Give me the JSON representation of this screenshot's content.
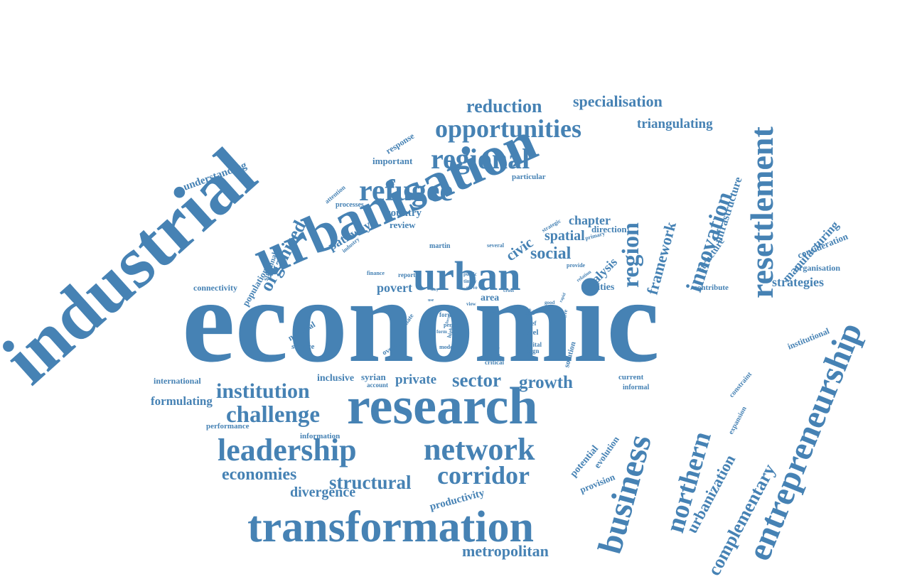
{
  "word_cloud": {
    "color": "#4682b4",
    "background": "#ffffff",
    "words": [
      "economic",
      "industrial",
      "urbanisation",
      "research",
      "urban",
      "resettlement",
      "entrepreneurship",
      "transformation",
      "network",
      "leadership",
      "business",
      "northern",
      "refugee",
      "regional",
      "opportunities",
      "innovation",
      "region",
      "corridor",
      "challenge",
      "institution",
      "sector",
      "structural",
      "reduction",
      "specialisation",
      "triangulating",
      "organised",
      "framework",
      "social",
      "complementary",
      "urbanization",
      "economies",
      "divergence",
      "metropolitan",
      "manufacturing",
      "strategies",
      "growth",
      "private",
      "civic",
      "spatial",
      "chapter",
      "analysis",
      "infrastructure",
      "understanding",
      "pathway",
      "formulating",
      "povert",
      "country",
      "review",
      "important",
      "response",
      "cities",
      "direction",
      "consideration",
      "organisation",
      "structure",
      "connectivity",
      "population",
      "sustainable",
      "national",
      "inclusive",
      "syrian",
      "international",
      "performance",
      "productivity",
      "potential",
      "evolution",
      "provision",
      "institutional",
      "constraint",
      "expansion",
      "contribute",
      "information",
      "service",
      "overview",
      "climate",
      "area",
      "acc",
      "level",
      "solution",
      "current",
      "informal",
      "processes",
      "attention",
      "industry",
      "particular",
      "martin",
      "several",
      "primary",
      "strategic",
      "provide",
      "relation",
      "public",
      "timely",
      "serve",
      "finance",
      "report",
      "initiative",
      "capital",
      "design",
      "policy",
      "recent",
      "critical",
      "model",
      "state",
      "formal",
      "period",
      "higher",
      "form",
      "focus",
      "brief",
      "view",
      "offer",
      "cross",
      "rapid",
      "good",
      "account",
      "may",
      "local",
      "use",
      "more"
    ]
  }
}
